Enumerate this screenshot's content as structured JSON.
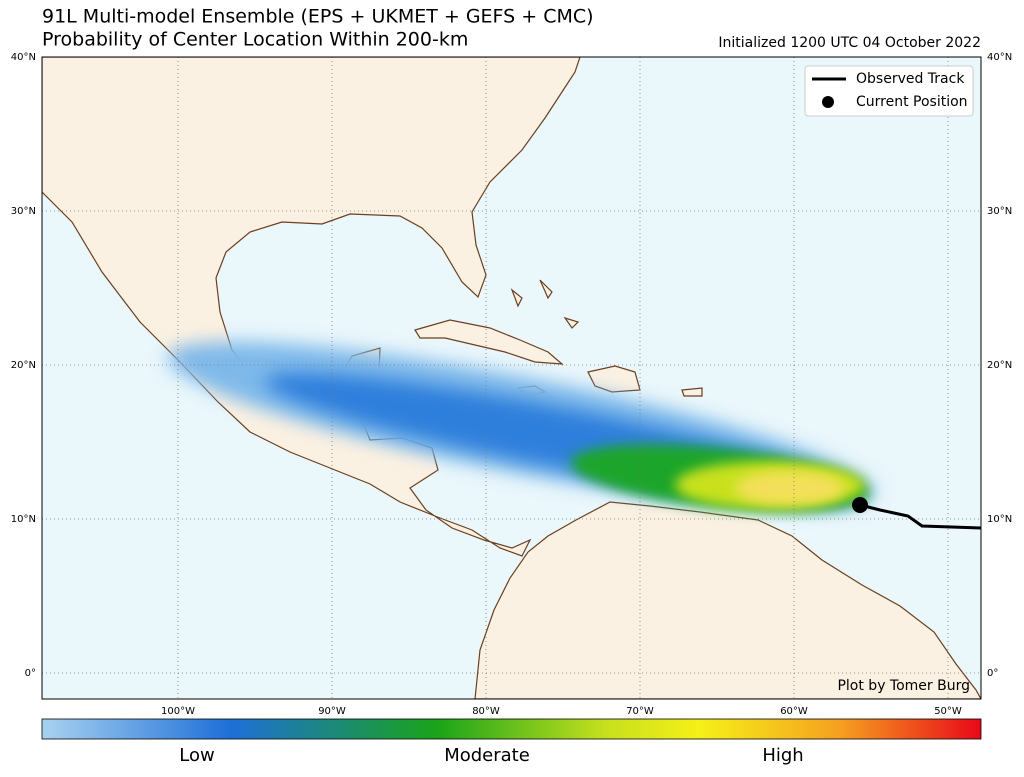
{
  "header": {
    "title": "91L Multi-model Ensemble (EPS + UKMET + GEFS + CMC)",
    "subtitle": "Probability of Center Location Within 200-km",
    "initialized": "Initialized 1200 UTC 04 October 2022"
  },
  "map": {
    "lat_labels": [
      "40°N",
      "30°N",
      "20°N",
      "10°N",
      "0°"
    ],
    "lon_labels": [
      "100°W",
      "90°W",
      "80°W",
      "70°W",
      "60°W",
      "50°W"
    ],
    "credit": "Plot by Tomer Burg"
  },
  "legend": {
    "items": [
      "Observed Track",
      "Current Position"
    ]
  },
  "colorbar": {
    "labels": [
      "Low",
      "Moderate",
      "High"
    ]
  }
}
